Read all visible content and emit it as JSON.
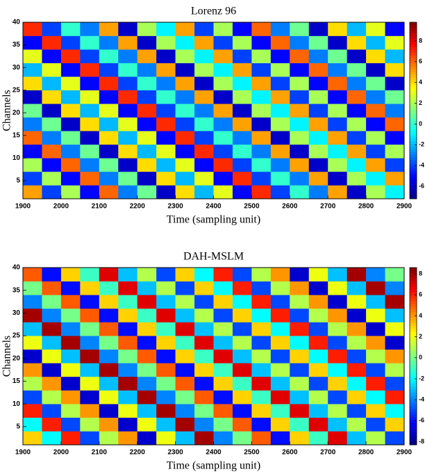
{
  "chart_data": [
    {
      "type": "heatmap",
      "title": "Lorenz 96",
      "xlabel": "Time (sampling unit)",
      "ylabel": "Channels",
      "colormap": "jet",
      "x": [
        1925,
        1975,
        2025,
        2075,
        2125,
        2175,
        2225,
        2275,
        2325,
        2375,
        2425,
        2475,
        2525,
        2575,
        2625,
        2675,
        2725,
        2775,
        2825,
        2875
      ],
      "y": [
        2.5,
        5.5,
        8.5,
        11.5,
        14.5,
        17.5,
        20.5,
        23.5,
        26.5,
        29.5,
        32.5,
        35.5,
        38.5
      ],
      "z": [
        [
          5,
          -4,
          2,
          -5,
          6,
          -3,
          1,
          -6,
          4,
          -2,
          3,
          -5,
          7,
          -4,
          0,
          -3,
          5,
          -6,
          2,
          -1
        ],
        [
          -4,
          2,
          -5,
          6,
          -3,
          1,
          -6,
          4,
          -2,
          3,
          -5,
          7,
          -4,
          0,
          -3,
          5,
          -6,
          2,
          -1,
          5
        ],
        [
          2,
          -5,
          6,
          -3,
          1,
          -6,
          4,
          -2,
          3,
          -5,
          7,
          -4,
          0,
          -3,
          5,
          -6,
          2,
          -1,
          5,
          -4
        ],
        [
          -5,
          6,
          -3,
          1,
          -6,
          4,
          -2,
          3,
          -5,
          7,
          -4,
          0,
          -3,
          5,
          -6,
          2,
          -1,
          5,
          -4,
          2
        ],
        [
          6,
          -3,
          1,
          -6,
          4,
          -2,
          3,
          -5,
          7,
          -4,
          0,
          -3,
          5,
          -6,
          2,
          -1,
          5,
          -4,
          2,
          -5
        ],
        [
          -3,
          1,
          -6,
          4,
          -2,
          3,
          -5,
          7,
          -4,
          0,
          -3,
          5,
          -6,
          2,
          -1,
          5,
          -4,
          2,
          -5,
          6
        ],
        [
          1,
          -6,
          4,
          -2,
          3,
          -5,
          7,
          -4,
          0,
          -3,
          5,
          -6,
          2,
          -1,
          5,
          -4,
          2,
          -5,
          6,
          -3
        ],
        [
          -6,
          4,
          -2,
          3,
          -5,
          7,
          -4,
          0,
          -3,
          5,
          -6,
          2,
          -1,
          5,
          -4,
          2,
          -5,
          6,
          -3,
          1
        ],
        [
          4,
          -2,
          3,
          -5,
          7,
          -4,
          0,
          -3,
          5,
          -6,
          2,
          -1,
          5,
          -4,
          2,
          -5,
          6,
          -3,
          1,
          -6
        ],
        [
          -2,
          3,
          -5,
          7,
          -4,
          0,
          -3,
          5,
          -6,
          2,
          -1,
          5,
          -4,
          2,
          -5,
          6,
          -3,
          1,
          -6,
          4
        ],
        [
          3,
          -5,
          7,
          -4,
          0,
          -3,
          5,
          -6,
          2,
          -1,
          5,
          -4,
          2,
          -5,
          6,
          -3,
          1,
          -6,
          4,
          -2
        ],
        [
          -5,
          7,
          -4,
          0,
          -3,
          5,
          -6,
          2,
          -1,
          5,
          -4,
          2,
          -5,
          6,
          -3,
          1,
          -6,
          4,
          -2,
          3
        ],
        [
          7,
          -4,
          0,
          -3,
          5,
          -6,
          2,
          -1,
          5,
          -4,
          2,
          -5,
          6,
          -3,
          1,
          -6,
          4,
          -2,
          3,
          -5
        ]
      ],
      "xlim": [
        1900,
        2900
      ],
      "ylim": [
        1,
        40
      ],
      "xticks": [
        1900,
        2000,
        2100,
        2200,
        2300,
        2400,
        2500,
        2600,
        2700,
        2800,
        2900
      ],
      "yticks": [
        5,
        10,
        15,
        20,
        25,
        30,
        35,
        40
      ],
      "clim": [
        -7.2,
        9.8
      ],
      "cticks": [
        -6,
        -4,
        -2,
        0,
        2,
        4,
        6,
        8
      ]
    },
    {
      "type": "heatmap",
      "title": "DAH-MSLM",
      "xlabel": "Time (sampling unit)",
      "ylabel": "Channels",
      "colormap": "jet",
      "x": [
        1925,
        1975,
        2025,
        2075,
        2125,
        2175,
        2225,
        2275,
        2325,
        2375,
        2425,
        2475,
        2525,
        2575,
        2625,
        2675,
        2725,
        2775,
        2825,
        2875
      ],
      "y": [
        2.5,
        5.5,
        8.5,
        11.5,
        14.5,
        17.5,
        20.5,
        23.5,
        26.5,
        29.5,
        32.5,
        35.5,
        38.5
      ],
      "z": [
        [
          3,
          -2,
          6,
          -5,
          1,
          4,
          -7,
          2,
          -3,
          8,
          -4,
          0,
          5,
          -6,
          3,
          -1,
          7,
          -3,
          1,
          -5
        ],
        [
          -2,
          6,
          -5,
          1,
          4,
          -7,
          2,
          -3,
          8,
          -4,
          0,
          5,
          -6,
          3,
          -1,
          7,
          -3,
          1,
          -5,
          3
        ],
        [
          6,
          -5,
          1,
          4,
          -7,
          2,
          -3,
          8,
          -4,
          0,
          5,
          -6,
          3,
          -1,
          7,
          -3,
          1,
          -5,
          3,
          -2
        ],
        [
          -5,
          1,
          4,
          -7,
          2,
          -3,
          8,
          -4,
          0,
          5,
          -6,
          3,
          -1,
          7,
          -3,
          1,
          -5,
          3,
          -2,
          6
        ],
        [
          1,
          4,
          -7,
          2,
          -3,
          8,
          -4,
          0,
          5,
          -6,
          3,
          -1,
          7,
          -3,
          1,
          -5,
          3,
          -2,
          6,
          -5
        ],
        [
          4,
          -7,
          2,
          -3,
          8,
          -4,
          0,
          5,
          -6,
          3,
          -1,
          7,
          -3,
          1,
          -5,
          3,
          -2,
          6,
          -5,
          1
        ],
        [
          -7,
          2,
          -3,
          8,
          -4,
          0,
          5,
          -6,
          3,
          -1,
          7,
          -3,
          1,
          -5,
          3,
          -2,
          6,
          -5,
          1,
          4
        ],
        [
          2,
          -3,
          8,
          -4,
          0,
          5,
          -6,
          3,
          -1,
          7,
          -3,
          1,
          -5,
          3,
          -2,
          6,
          -5,
          1,
          4,
          -7
        ],
        [
          -3,
          8,
          -4,
          0,
          5,
          -6,
          3,
          -1,
          7,
          -3,
          1,
          -5,
          3,
          -2,
          6,
          -5,
          1,
          4,
          -7,
          2
        ],
        [
          8,
          -4,
          0,
          5,
          -6,
          3,
          -1,
          7,
          -3,
          1,
          -5,
          3,
          -2,
          6,
          -5,
          1,
          4,
          -7,
          2,
          -3
        ],
        [
          -4,
          0,
          5,
          -6,
          3,
          -1,
          7,
          -3,
          1,
          -5,
          3,
          -2,
          6,
          -5,
          1,
          4,
          -7,
          2,
          -3,
          8
        ],
        [
          0,
          5,
          -6,
          3,
          -1,
          7,
          -3,
          1,
          -5,
          3,
          -2,
          6,
          -5,
          1,
          4,
          -7,
          2,
          -3,
          8,
          -4
        ],
        [
          5,
          -6,
          3,
          -1,
          7,
          -3,
          1,
          -5,
          3,
          -2,
          6,
          -5,
          1,
          4,
          -7,
          2,
          -3,
          8,
          -4,
          0
        ]
      ],
      "xlim": [
        1900,
        2900
      ],
      "ylim": [
        1,
        40
      ],
      "xticks": [
        1900,
        2000,
        2100,
        2200,
        2300,
        2400,
        2500,
        2600,
        2700,
        2800,
        2900
      ],
      "yticks": [
        5,
        10,
        15,
        20,
        25,
        30,
        35,
        40
      ],
      "clim": [
        -8.3,
        8.6
      ],
      "cticks": [
        -8,
        -6,
        -4,
        -2,
        0,
        2,
        4,
        6,
        8
      ]
    }
  ]
}
